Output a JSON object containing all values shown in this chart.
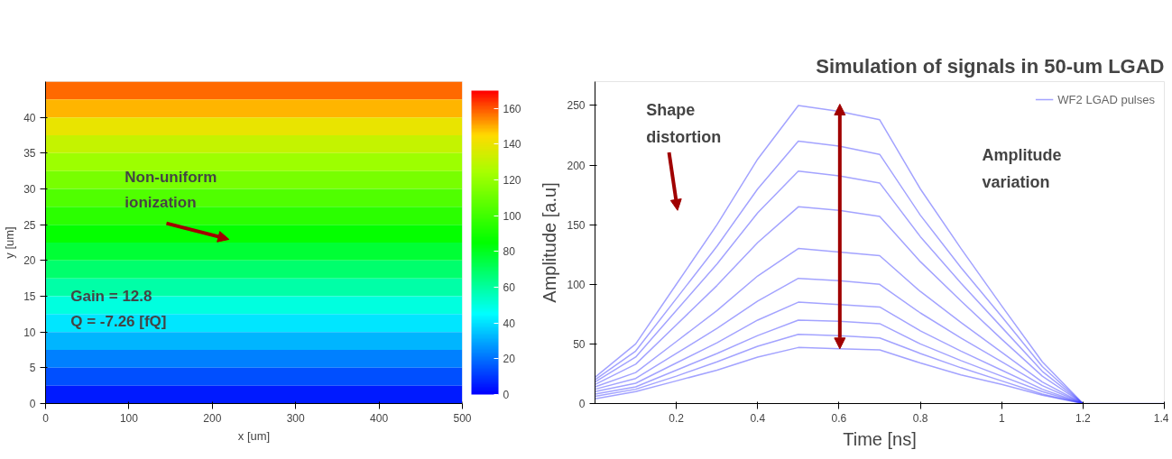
{
  "chart_data": [
    {
      "type": "heatmap",
      "xlabel": "x [um]",
      "ylabel": "y [um]",
      "cells": [
        [
          158
        ],
        [
          149
        ],
        [
          140
        ],
        [
          131
        ],
        [
          122
        ],
        [
          113
        ],
        [
          104
        ],
        [
          95
        ],
        [
          86
        ],
        [
          77
        ],
        [
          68
        ],
        [
          59
        ],
        [
          50
        ],
        [
          41
        ],
        [
          32
        ],
        [
          23
        ],
        [
          14
        ],
        [
          5
        ]
      ],
      "clim": [
        0,
        170
      ],
      "cticks": [
        0,
        20,
        40,
        60,
        80,
        100,
        120,
        140,
        160
      ],
      "xlim": [
        0,
        500
      ],
      "ylim": [
        0,
        45
      ],
      "xticks": [
        0,
        100,
        200,
        300,
        400,
        500
      ],
      "yticks": [
        0,
        5,
        10,
        15,
        20,
        25,
        30,
        35,
        40
      ],
      "annotations": [
        "Non-uniform\nionization",
        "Gain = 12.8\nQ = -7.26 [fQ]"
      ]
    },
    {
      "type": "line",
      "title": "Simulation of signals in 50-um LGAD",
      "xlabel": "Time [ns]",
      "ylabel": "Amplitude [a.u]",
      "x": [
        0,
        0.1,
        0.2,
        0.3,
        0.4,
        0.5,
        0.6,
        0.7,
        0.8,
        0.9,
        1.0,
        1.1,
        1.2
      ],
      "series": [
        {
          "name": "WF2 LGAD pulses",
          "color": "#3333ff",
          "x": [
            0,
            0.1,
            0.2,
            0.3,
            0.4,
            0.5,
            0.6,
            0.7,
            0.8,
            0.9,
            1.0,
            1.1,
            1.2,
            1.4
          ],
          "values": [
            22,
            50,
            100,
            150,
            205,
            250,
            245,
            238,
            180,
            130,
            82,
            35,
            0,
            0
          ]
        },
        {
          "color": "#3333ff",
          "values": [
            20,
            44,
            88,
            132,
            180,
            220,
            216,
            209,
            158,
            114,
            73,
            31,
            0
          ]
        },
        {
          "color": "#3333ff",
          "values": [
            18,
            39,
            78,
            117,
            160,
            195,
            191,
            185,
            140,
            101,
            64,
            27,
            0
          ]
        },
        {
          "color": "#3333ff",
          "values": [
            16,
            33,
            66,
            99,
            135,
            165,
            162,
            157,
            119,
            86,
            54,
            23,
            0
          ]
        },
        {
          "color": "#3333ff",
          "values": [
            14,
            26,
            52,
            78,
            107,
            130,
            127,
            124,
            94,
            68,
            43,
            18,
            0
          ]
        },
        {
          "color": "#3333ff",
          "values": [
            12,
            21,
            42,
            63,
            86,
            105,
            103,
            100,
            76,
            55,
            35,
            15,
            0
          ]
        },
        {
          "color": "#3333ff",
          "values": [
            10,
            17,
            34,
            51,
            70,
            85,
            83,
            81,
            61,
            44,
            28,
            12,
            0
          ]
        },
        {
          "color": "#3333ff",
          "values": [
            8,
            14,
            28,
            42,
            57,
            70,
            69,
            67,
            50,
            36,
            23,
            10,
            0
          ]
        },
        {
          "color": "#3333ff",
          "values": [
            6,
            12,
            23,
            35,
            48,
            58,
            57,
            55,
            42,
            30,
            19,
            8,
            0
          ]
        },
        {
          "color": "#3333ff",
          "values": [
            4,
            10,
            19,
            28,
            39,
            47,
            46,
            45,
            34,
            24,
            16,
            7,
            0
          ]
        }
      ],
      "xlim": [
        0,
        1.4
      ],
      "ylim": [
        0,
        270
      ],
      "xticks": [
        0.2,
        0.4,
        0.6,
        0.8,
        {
          "value": 1,
          "label": "1"
        },
        1.2,
        1.4
      ],
      "yticks": [
        0,
        50,
        100,
        150,
        200,
        250
      ],
      "legend": "top right",
      "annotations": [
        "Shape\ndistortion",
        "Amplitude\nvariation"
      ]
    }
  ]
}
